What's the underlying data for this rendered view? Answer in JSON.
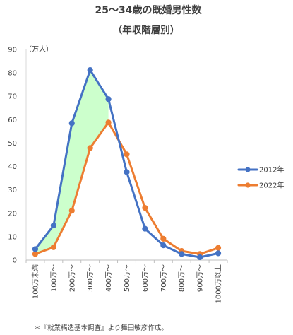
{
  "chart_data": {
    "type": "line",
    "title": "25～34歳の既婚男性数",
    "subtitle": "（年収階層別）",
    "yunit": "（万人）",
    "ylim": [
      0,
      90
    ],
    "yticks": [
      0,
      10,
      20,
      30,
      40,
      50,
      60,
      70,
      80,
      90
    ],
    "categories": [
      "100万未満",
      "100万～",
      "200万～",
      "300万～",
      "400万～",
      "500万～",
      "600万～",
      "700万～",
      "800万～",
      "900万～",
      "1000万以上"
    ],
    "series": [
      {
        "name": "2012年",
        "color": "#4472C4",
        "values": [
          4.7,
          14.8,
          58.5,
          81.2,
          68.8,
          37.6,
          13.4,
          6.3,
          2.6,
          1.2,
          2.9
        ]
      },
      {
        "name": "2022年",
        "color": "#ED7D31",
        "values": [
          2.6,
          5.5,
          21.1,
          47.9,
          58.8,
          45.2,
          22.3,
          9.1,
          3.9,
          2.6,
          5.2
        ]
      }
    ],
    "shading": {
      "color": "#CCFFCC",
      "between": [
        "2012年",
        "2022年"
      ],
      "where": "2012年 above 2022年",
      "range": [
        0,
        4
      ]
    },
    "legend_position": "right",
    "grid": false
  },
  "footnote": "＊『就業構造基本調査』より舞田敏彦作成。"
}
